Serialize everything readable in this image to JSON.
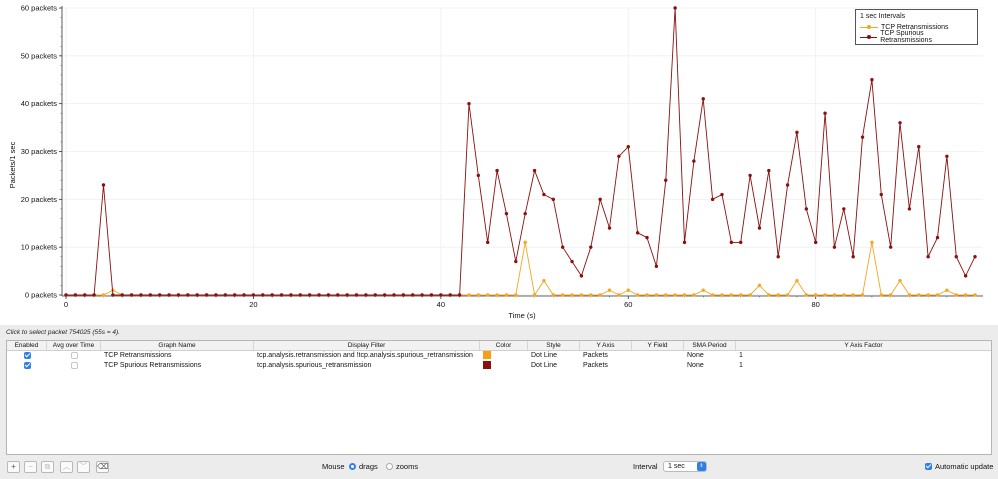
{
  "chart_data": {
    "type": "line",
    "xlabel": "Time (s)",
    "ylabel": "Packets/1 sec",
    "xlim": [
      0,
      97
    ],
    "ylim": [
      0,
      60
    ],
    "x_ticks": [
      0,
      20,
      40,
      60,
      80
    ],
    "y_ticks": [
      0,
      10,
      20,
      30,
      40,
      50,
      60
    ],
    "y_tick_labels": [
      "0 packets",
      "10 packets",
      "20 packets",
      "30 packets",
      "40 packets",
      "50 packets",
      "60 packets"
    ],
    "x": [
      0,
      1,
      2,
      3,
      4,
      5,
      6,
      7,
      8,
      9,
      10,
      11,
      12,
      13,
      14,
      15,
      16,
      17,
      18,
      19,
      20,
      21,
      22,
      23,
      24,
      25,
      26,
      27,
      28,
      29,
      30,
      31,
      32,
      33,
      34,
      35,
      36,
      37,
      38,
      39,
      40,
      41,
      42,
      43,
      44,
      45,
      46,
      47,
      48,
      49,
      50,
      51,
      52,
      53,
      54,
      55,
      56,
      57,
      58,
      59,
      60,
      61,
      62,
      63,
      64,
      65,
      66,
      67,
      68,
      69,
      70,
      71,
      72,
      73,
      74,
      75,
      76,
      77,
      78,
      79,
      80,
      81,
      82,
      83,
      84,
      85,
      86,
      87,
      88,
      89,
      90,
      91,
      92,
      93,
      94,
      95,
      96,
      97
    ],
    "series": [
      {
        "name": "TCP Retransmissions",
        "color": "#f5a623",
        "values": [
          0,
          0,
          0,
          0,
          0,
          1,
          0,
          0,
          0,
          0,
          0,
          0,
          0,
          0,
          0,
          0,
          0,
          0,
          0,
          0,
          0,
          0,
          0,
          0,
          0,
          0,
          0,
          0,
          0,
          0,
          0,
          0,
          0,
          0,
          0,
          0,
          0,
          0,
          0,
          0,
          0,
          0,
          0,
          0,
          0,
          0,
          0,
          0,
          0,
          11,
          0,
          3,
          0,
          0,
          0,
          0,
          0,
          0,
          1,
          0,
          1,
          0,
          0,
          0,
          0,
          0,
          0,
          0,
          1,
          0,
          0,
          0,
          0,
          0,
          2,
          0,
          0,
          0,
          3,
          0,
          0,
          0,
          0,
          0,
          0,
          0,
          11,
          0,
          0,
          3,
          0,
          0,
          0,
          0,
          1,
          0,
          0,
          0
        ]
      },
      {
        "name": "TCP Spurious Retransmissions",
        "color": "#8b1010",
        "values": [
          0,
          0,
          0,
          0,
          23,
          0,
          0,
          0,
          0,
          0,
          0,
          0,
          0,
          0,
          0,
          0,
          0,
          0,
          0,
          0,
          0,
          0,
          0,
          0,
          0,
          0,
          0,
          0,
          0,
          0,
          0,
          0,
          0,
          0,
          0,
          0,
          0,
          0,
          0,
          0,
          0,
          0,
          0,
          40,
          25,
          11,
          26,
          17,
          7,
          17,
          26,
          21,
          20,
          10,
          7,
          4,
          10,
          20,
          14,
          29,
          31,
          13,
          12,
          6,
          24,
          60,
          11,
          28,
          41,
          20,
          21,
          11,
          11,
          25,
          14,
          26,
          8,
          23,
          34,
          18,
          11,
          38,
          10,
          18,
          8,
          33,
          45,
          21,
          10,
          36,
          18,
          31,
          8,
          12,
          29,
          8,
          4,
          8
        ]
      }
    ],
    "legend": {
      "title": "1 sec Intervals",
      "placement": "top-right"
    }
  },
  "status_text": "Click to select packet 754025 (55s = 4).",
  "table": {
    "headers": [
      "Enabled",
      "Avg over Time",
      "Graph Name",
      "Display Filter",
      "Color",
      "Style",
      "Y Axis",
      "Y Field",
      "SMA Period",
      "Y Axis Factor"
    ],
    "rows": [
      {
        "enabled": true,
        "avg": false,
        "name": "TCP Retransmissions",
        "filter": "tcp.analysis.retransmission and !tcp.analysis.spurious_retransmission",
        "color": "#f5a016",
        "style": "Dot Line",
        "y_axis": "Packets",
        "y_field": "",
        "sma": "None",
        "factor": "1"
      },
      {
        "enabled": true,
        "avg": false,
        "name": "TCP Spurious Retransmissions",
        "filter": "tcp.analysis.spurious_retransmission",
        "color": "#8b1010",
        "style": "Dot Line",
        "y_axis": "Packets",
        "y_field": "",
        "sma": "None",
        "factor": "1"
      }
    ]
  },
  "toolbar": {
    "add": "+",
    "remove": "−",
    "copy": "⧉",
    "up": "︿",
    "down": "﹀",
    "clear": "⌫"
  },
  "controls": {
    "mouse_label": "Mouse",
    "drags_label": "drags",
    "zooms_label": "zooms",
    "mouse_mode": "drags",
    "interval_label": "Interval",
    "interval_value": "1 sec",
    "auto_update_label": "Automatic update",
    "auto_update": true
  },
  "icons": {
    "interval_arrows": "⇕"
  }
}
